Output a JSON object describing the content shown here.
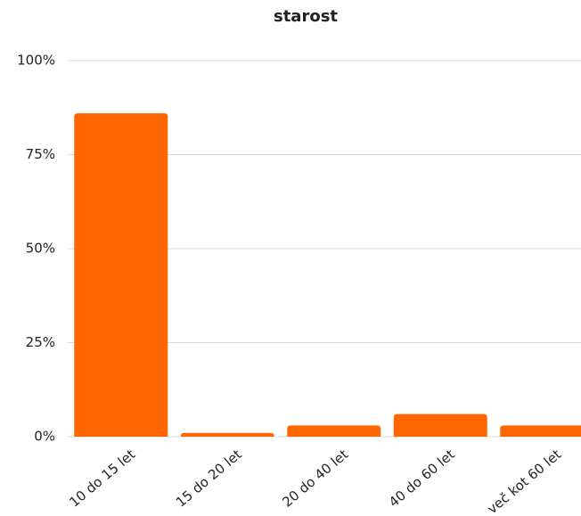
{
  "chart_data": {
    "type": "bar",
    "title": "starost",
    "categories": [
      "10 do 15 let",
      "15 do 20 let",
      "20 do 40 let",
      "40 do 60 let",
      "več kot 60 let"
    ],
    "values": [
      86,
      1,
      3,
      6,
      3
    ],
    "color": "#ff6600",
    "ylim": [
      0,
      100
    ],
    "yticks": [
      {
        "value": 0,
        "label": "0%"
      },
      {
        "value": 25,
        "label": "25%"
      },
      {
        "value": 50,
        "label": "50%"
      },
      {
        "value": 75,
        "label": "75%"
      },
      {
        "value": 100,
        "label": "100%"
      }
    ],
    "grid": true
  }
}
